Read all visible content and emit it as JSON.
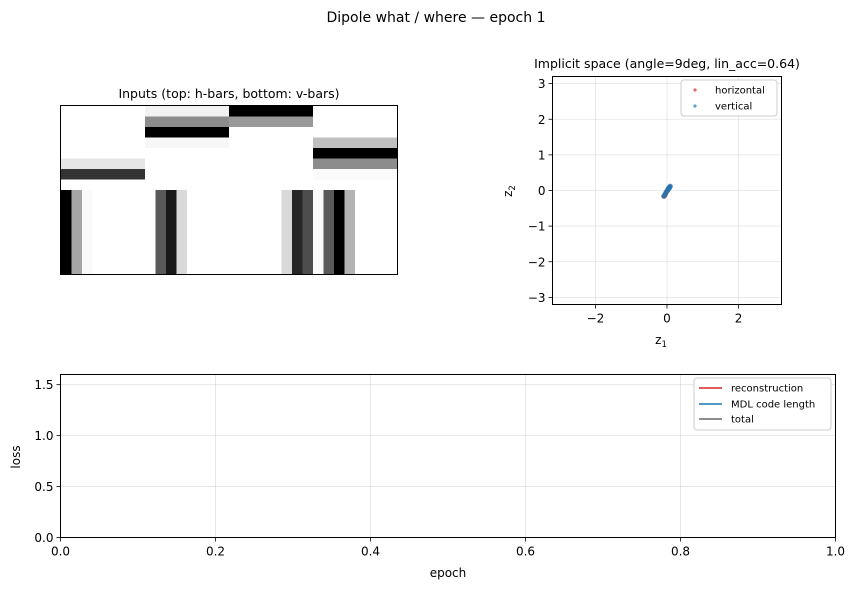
{
  "figure": {
    "suptitle": "Dipole what / where — epoch 1"
  },
  "chart_data": [
    {
      "type": "heatmap",
      "title": "Inputs (top: h-bars, bottom: v-bars)",
      "colormap": "gray_r",
      "grid": false,
      "axes_visible": false,
      "panels": [
        {
          "name": "h-bar 1",
          "orientation": "horizontal",
          "values": [
            0,
            0,
            0,
            0,
            0,
            0.1,
            0.8,
            0
          ]
        },
        {
          "name": "h-bar 2",
          "orientation": "horizontal",
          "values": [
            0.05,
            0.45,
            1,
            0.03,
            0,
            0,
            0,
            0
          ]
        },
        {
          "name": "h-bar 3",
          "orientation": "horizontal",
          "values": [
            1,
            0.4,
            0,
            0,
            0,
            0,
            0,
            0
          ]
        },
        {
          "name": "h-bar 4",
          "orientation": "horizontal",
          "values": [
            0,
            0,
            0,
            0.25,
            1,
            0.45,
            0.02,
            0
          ]
        },
        {
          "name": "v-bar 1",
          "orientation": "vertical",
          "values": [
            1,
            0.35,
            0.02,
            0,
            0,
            0,
            0,
            0
          ]
        },
        {
          "name": "v-bar 2",
          "orientation": "vertical",
          "values": [
            0,
            0.65,
            0.9,
            0.15,
            0,
            0,
            0,
            0
          ]
        },
        {
          "name": "v-bar 3",
          "orientation": "vertical",
          "values": [
            0,
            0,
            0,
            0,
            0,
            0.15,
            0.85,
            0.7
          ]
        },
        {
          "name": "v-bar 4",
          "orientation": "vertical",
          "values": [
            0.02,
            0.65,
            1,
            0.3,
            0,
            0,
            0,
            0
          ]
        }
      ]
    },
    {
      "type": "scatter",
      "title": "Implicit space  (angle=9deg, lin_acc=0.64)",
      "xlabel_main": "z",
      "xlabel_sub": "1",
      "ylabel_main": "z",
      "ylabel_sub": "2",
      "xlim": [
        -3.2,
        3.2
      ],
      "ylim": [
        -3.2,
        3.2
      ],
      "xticks": [
        -2,
        0,
        2
      ],
      "xtick_labels": [
        "−2",
        "0",
        "2"
      ],
      "yticks": [
        -3,
        -2,
        -1,
        0,
        1,
        2,
        3
      ],
      "ytick_labels": [
        "−3",
        "−2",
        "−1",
        "0",
        "1",
        "2",
        "3"
      ],
      "grid": true,
      "legend_position": "upper-right",
      "series": [
        {
          "name": "horizontal",
          "color": "#d62728",
          "points": [
            [
              -0.06,
              -0.13
            ],
            [
              -0.03,
              -0.07
            ],
            [
              0.0,
              -0.02
            ],
            [
              0.03,
              0.03
            ],
            [
              0.06,
              0.07
            ],
            [
              0.08,
              0.1
            ],
            [
              -0.08,
              -0.16
            ]
          ]
        },
        {
          "name": "vertical",
          "color": "#1f77b4",
          "points": [
            [
              -0.09,
              -0.16
            ],
            [
              -0.05,
              -0.1
            ],
            [
              -0.02,
              -0.04
            ],
            [
              0.02,
              0.01
            ],
            [
              0.05,
              0.05
            ],
            [
              0.07,
              0.09
            ],
            [
              0.09,
              0.12
            ],
            [
              0.04,
              0.06
            ]
          ]
        }
      ]
    },
    {
      "type": "line",
      "title": "",
      "xlabel": "epoch",
      "ylabel": "loss",
      "xlim": [
        0,
        1
      ],
      "ylim": [
        0,
        1.6
      ],
      "xticks": [
        0,
        0.2,
        0.4,
        0.6,
        0.8,
        1.0
      ],
      "xtick_labels": [
        "0.0",
        "0.2",
        "0.4",
        "0.6",
        "0.8",
        "1.0"
      ],
      "yticks": [
        0,
        0.5,
        1.0,
        1.5
      ],
      "ytick_labels": [
        "0.0",
        "0.5",
        "1.0",
        "1.5"
      ],
      "grid": true,
      "legend_position": "upper-right",
      "series": [
        {
          "name": "reconstruction",
          "color": "#d62728",
          "x": [],
          "y": []
        },
        {
          "name": "MDL code length",
          "color": "#1f77b4",
          "x": [],
          "y": []
        },
        {
          "name": "total",
          "color": "#666666",
          "x": [],
          "y": []
        }
      ]
    }
  ]
}
